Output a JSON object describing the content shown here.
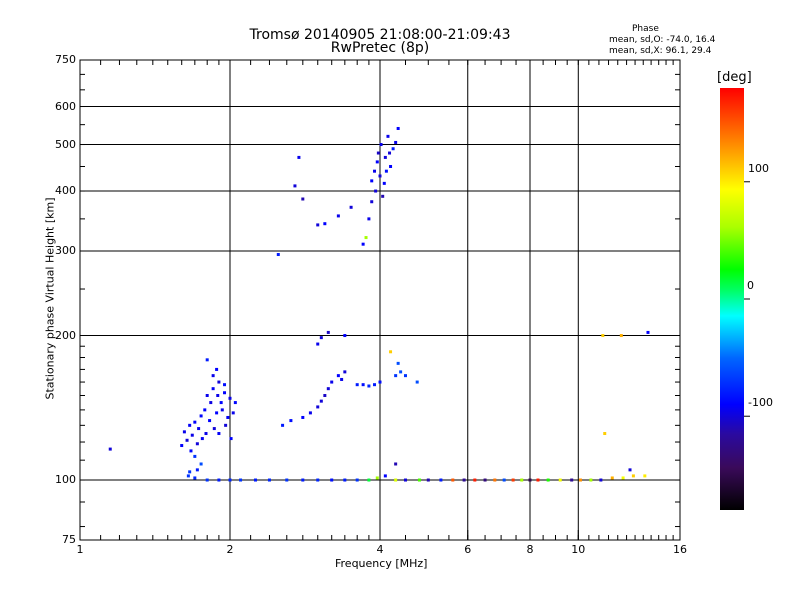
{
  "header": {
    "title_line1": "Tromsø 20140905 21:08:00-21:09:43",
    "title_line2": "RwPretec (8p)",
    "phase_title": "Phase",
    "phase_o": "mean, sd,O: -74.0, 16.4",
    "phase_x": "mean, sd,X:  96.1, 29.4"
  },
  "colorbar": {
    "unit": "[deg]",
    "ticks": [
      {
        "value": 100,
        "label": "100"
      },
      {
        "value": 0,
        "label": "0"
      },
      {
        "value": -100,
        "label": "-100"
      }
    ],
    "range": [
      -180,
      180
    ]
  },
  "chart_data": {
    "type": "scatter",
    "title": "Tromsø 20140905 21:08:00-21:09:43",
    "subtitle": "RwPretec (8p)",
    "xlabel": "Frequency [MHz]",
    "ylabel": "Stationary phase Virtual Height [km]",
    "x_scale": "log",
    "y_scale": "log",
    "xlim": [
      1,
      16
    ],
    "ylim": [
      75,
      750
    ],
    "x_ticks": [
      1,
      2,
      4,
      6,
      8,
      10,
      16
    ],
    "x_tick_labels": [
      "1",
      "2",
      "4",
      "6",
      "8",
      "10",
      "16"
    ],
    "y_ticks": [
      75,
      100,
      200,
      300,
      400,
      500,
      600,
      750
    ],
    "y_tick_labels": [
      "75",
      "100",
      "200",
      "300",
      "400",
      "500",
      "600",
      "750"
    ],
    "grid": true,
    "grid_x": [
      2,
      4,
      6,
      8,
      10
    ],
    "grid_y": [
      100,
      200,
      300,
      400,
      500,
      600
    ],
    "color_scale": "phase [deg], -180 to 180",
    "points": [
      [
        1.15,
        116,
        -100
      ],
      [
        1.6,
        118,
        -90
      ],
      [
        1.62,
        126,
        -95
      ],
      [
        1.64,
        121,
        -100
      ],
      [
        1.66,
        130,
        -92
      ],
      [
        1.67,
        115,
        -88
      ],
      [
        1.68,
        124,
        -96
      ],
      [
        1.7,
        132,
        -90
      ],
      [
        1.72,
        119,
        -100
      ],
      [
        1.73,
        128,
        -95
      ],
      [
        1.75,
        136,
        -88
      ],
      [
        1.76,
        122,
        -93
      ],
      [
        1.78,
        140,
        -90
      ],
      [
        1.79,
        125,
        -96
      ],
      [
        1.8,
        150,
        -95
      ],
      [
        1.82,
        133,
        -90
      ],
      [
        1.83,
        145,
        -98
      ],
      [
        1.85,
        155,
        -92
      ],
      [
        1.86,
        128,
        -100
      ],
      [
        1.88,
        138,
        -90
      ],
      [
        1.89,
        150,
        -96
      ],
      [
        1.9,
        125,
        -92
      ],
      [
        1.92,
        145,
        -88
      ],
      [
        1.93,
        140,
        -95
      ],
      [
        1.95,
        152,
        -90
      ],
      [
        1.96,
        130,
        -100
      ],
      [
        1.98,
        135,
        -92
      ],
      [
        2.0,
        148,
        -96
      ],
      [
        2.01,
        122,
        -90
      ],
      [
        2.03,
        138,
        -95
      ],
      [
        2.05,
        145,
        -88
      ],
      [
        1.8,
        178,
        -80
      ],
      [
        1.85,
        165,
        -95
      ],
      [
        1.9,
        160,
        -100
      ],
      [
        1.88,
        170,
        -90
      ],
      [
        1.95,
        158,
        -85
      ],
      [
        1.7,
        112,
        -70
      ],
      [
        1.75,
        108,
        -60
      ],
      [
        1.72,
        105,
        -80
      ],
      [
        1.66,
        104,
        -70
      ],
      [
        1.65,
        102,
        -70
      ],
      [
        1.7,
        101,
        -75
      ],
      [
        1.8,
        100,
        -70
      ],
      [
        1.9,
        100,
        -80
      ],
      [
        2.0,
        100,
        -75
      ],
      [
        2.1,
        100,
        -70
      ],
      [
        2.25,
        100,
        -80
      ],
      [
        2.4,
        100,
        -75
      ],
      [
        2.6,
        100,
        -70
      ],
      [
        2.8,
        100,
        -80
      ],
      [
        3.0,
        100,
        -75
      ],
      [
        3.2,
        100,
        -85
      ],
      [
        3.4,
        100,
        -80
      ],
      [
        3.6,
        100,
        -70
      ],
      [
        3.8,
        100,
        15
      ],
      [
        3.95,
        101,
        60
      ],
      [
        4.1,
        102,
        -90
      ],
      [
        4.3,
        100,
        80
      ],
      [
        4.5,
        100,
        -100
      ],
      [
        4.8,
        100,
        40
      ],
      [
        5.0,
        100,
        -110
      ],
      [
        5.3,
        100,
        -80
      ],
      [
        5.6,
        100,
        150
      ],
      [
        5.9,
        100,
        -120
      ],
      [
        6.2,
        100,
        170
      ],
      [
        6.5,
        100,
        -130
      ],
      [
        6.8,
        100,
        140
      ],
      [
        7.1,
        100,
        -60
      ],
      [
        7.4,
        100,
        160
      ],
      [
        7.7,
        100,
        60
      ],
      [
        8.0,
        100,
        -150
      ],
      [
        8.3,
        100,
        170
      ],
      [
        8.7,
        100,
        30
      ],
      [
        9.2,
        100,
        90
      ],
      [
        9.7,
        100,
        -120
      ],
      [
        10.1,
        100,
        130
      ],
      [
        10.6,
        100,
        60
      ],
      [
        11.1,
        100,
        -100
      ],
      [
        11.7,
        101,
        120
      ],
      [
        12.3,
        101,
        90
      ],
      [
        12.9,
        102,
        110
      ],
      [
        13.6,
        102,
        100
      ],
      [
        2.55,
        130,
        -80
      ],
      [
        2.65,
        133,
        -85
      ],
      [
        2.8,
        135,
        -90
      ],
      [
        2.9,
        138,
        -95
      ],
      [
        3.0,
        142,
        -100
      ],
      [
        3.05,
        146,
        -100
      ],
      [
        3.1,
        150,
        -105
      ],
      [
        3.15,
        155,
        -100
      ],
      [
        3.2,
        160,
        -95
      ],
      [
        3.3,
        165,
        -90
      ],
      [
        3.35,
        162,
        -95
      ],
      [
        3.4,
        168,
        -100
      ],
      [
        3.0,
        192,
        -95
      ],
      [
        3.05,
        198,
        -100
      ],
      [
        3.15,
        203,
        -105
      ],
      [
        3.6,
        158,
        -80
      ],
      [
        3.7,
        158,
        -85
      ],
      [
        3.8,
        157,
        -75
      ],
      [
        3.9,
        158,
        -80
      ],
      [
        4.0,
        160,
        -85
      ],
      [
        4.3,
        165,
        -70
      ],
      [
        4.4,
        168,
        -60
      ],
      [
        4.5,
        165,
        -70
      ],
      [
        4.75,
        160,
        -60
      ],
      [
        4.2,
        185,
        110
      ],
      [
        4.35,
        175,
        -60
      ],
      [
        2.5,
        295,
        -80
      ],
      [
        2.7,
        410,
        -100
      ],
      [
        2.8,
        385,
        -110
      ],
      [
        2.75,
        470,
        -95
      ],
      [
        3.0,
        340,
        -100
      ],
      [
        3.1,
        342,
        -90
      ],
      [
        3.3,
        355,
        -95
      ],
      [
        3.5,
        370,
        -100
      ],
      [
        3.7,
        310,
        -90
      ],
      [
        3.75,
        320,
        60
      ],
      [
        3.8,
        350,
        -95
      ],
      [
        3.85,
        380,
        -100
      ],
      [
        3.85,
        420,
        -90
      ],
      [
        3.9,
        440,
        -95
      ],
      [
        3.92,
        400,
        -100
      ],
      [
        3.95,
        460,
        -90
      ],
      [
        3.97,
        480,
        -105
      ],
      [
        4.0,
        430,
        -100
      ],
      [
        4.02,
        500,
        -95
      ],
      [
        4.05,
        390,
        -110
      ],
      [
        4.08,
        415,
        -90
      ],
      [
        4.1,
        470,
        -100
      ],
      [
        4.12,
        440,
        -85
      ],
      [
        4.15,
        520,
        -95
      ],
      [
        4.18,
        480,
        -100
      ],
      [
        4.2,
        450,
        -90
      ],
      [
        4.25,
        490,
        -80
      ],
      [
        4.3,
        505,
        -95
      ],
      [
        4.35,
        540,
        -90
      ],
      [
        3.4,
        200,
        -90
      ],
      [
        11.2,
        200,
        110
      ],
      [
        12.2,
        200,
        120
      ],
      [
        13.8,
        203,
        -90
      ],
      [
        11.3,
        125,
        110
      ],
      [
        4.3,
        108,
        -110
      ],
      [
        12.7,
        105,
        -100
      ]
    ]
  }
}
